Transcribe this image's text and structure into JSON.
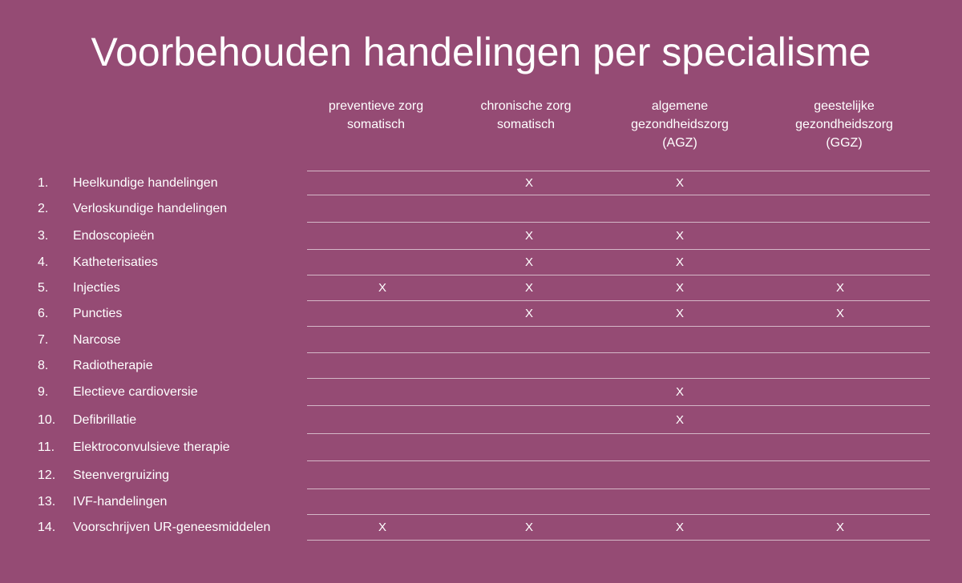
{
  "title": "Voorbehouden handelingen per specialisme",
  "columns": [
    {
      "lines": [
        "preventieve zorg",
        "somatisch"
      ]
    },
    {
      "lines": [
        "chronische zorg",
        "somatisch"
      ]
    },
    {
      "lines": [
        "algemene",
        "gezondheidszorg",
        "(AGZ)"
      ]
    },
    {
      "lines": [
        "geestelijke",
        "gezondheidszorg",
        "(GGZ)"
      ]
    }
  ],
  "rows": [
    {
      "num": "1.",
      "label": "Heelkundige handelingen",
      "marks": [
        "",
        "X",
        "X",
        ""
      ]
    },
    {
      "num": "2.",
      "label": "Verloskundige handelingen",
      "marks": [
        "",
        "",
        "",
        ""
      ]
    },
    {
      "num": "3.",
      "label": "Endoscopieën",
      "marks": [
        "",
        "X",
        "X",
        ""
      ]
    },
    {
      "num": "4.",
      "label": "Katheterisaties",
      "marks": [
        "",
        "X",
        "X",
        ""
      ]
    },
    {
      "num": "5.",
      "label": "Injecties",
      "marks": [
        "X",
        "X",
        "X",
        "X"
      ]
    },
    {
      "num": "6.",
      "label": "Puncties",
      "marks": [
        "",
        "X",
        "X",
        "X"
      ]
    },
    {
      "num": "7.",
      "label": "Narcose",
      "marks": [
        "",
        "",
        "",
        ""
      ]
    },
    {
      "num": "8.",
      "label": "Radiotherapie",
      "marks": [
        "",
        "",
        "",
        ""
      ]
    },
    {
      "num": "9.",
      "label": "Electieve cardioversie",
      "marks": [
        "",
        "",
        "X",
        ""
      ]
    },
    {
      "num": "10.",
      "label": "Defibrillatie",
      "marks": [
        "",
        "",
        "X",
        ""
      ]
    },
    {
      "num": "11.",
      "label": "Elektroconvulsieve therapie",
      "marks": [
        "",
        "",
        "",
        ""
      ]
    },
    {
      "num": "12.",
      "label": "Steenvergruizing",
      "marks": [
        "",
        "",
        "",
        ""
      ]
    },
    {
      "num": "13.",
      "label": "IVF-handelingen",
      "marks": [
        "",
        "",
        "",
        ""
      ]
    },
    {
      "num": "14.",
      "label": "Voorschrijven UR-geneesmiddelen",
      "marks": [
        "X",
        "X",
        "X",
        "X"
      ]
    }
  ]
}
